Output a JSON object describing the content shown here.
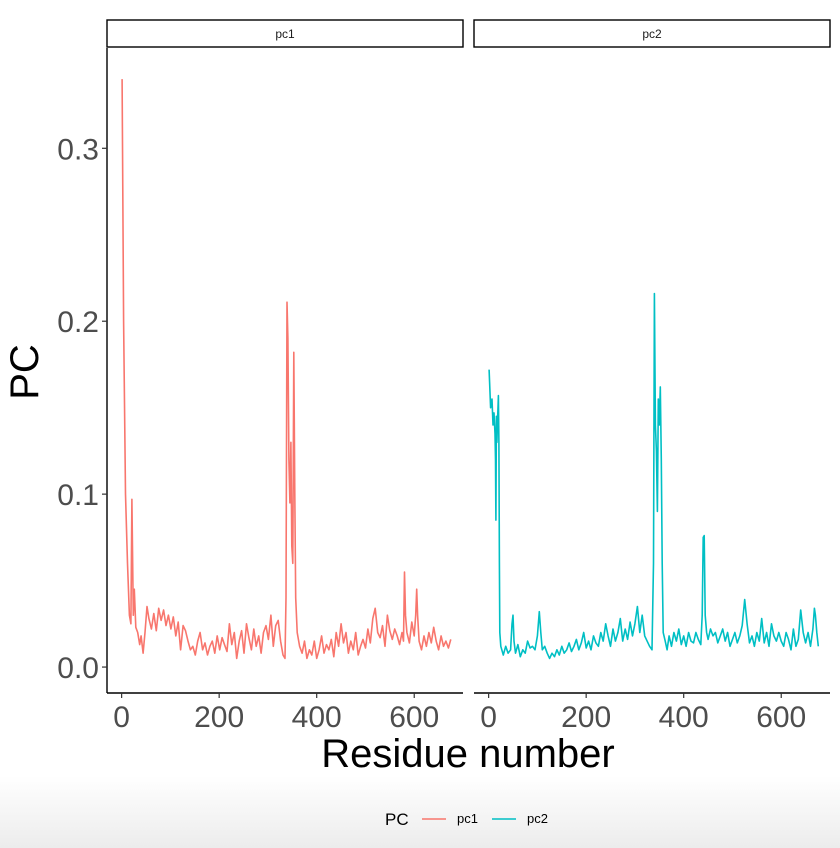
{
  "chart_data": {
    "type": "line",
    "xlabel": "Residue number",
    "ylabel": "PC",
    "xlim": [
      -30,
      700
    ],
    "ylim": [
      -0.015,
      0.358
    ],
    "xticks": [
      0,
      200,
      400,
      600
    ],
    "yticks": [
      0.0,
      0.1,
      0.2,
      0.3
    ],
    "ytick_labels": [
      "0.0",
      "0.1",
      "0.2",
      "0.3"
    ],
    "grid": false,
    "legend": {
      "title": "PC",
      "placement": "bottom"
    },
    "facets": [
      {
        "strip": "pc1",
        "name": "pc1",
        "color": "#F8766D",
        "points": [
          [
            1,
            0.34
          ],
          [
            4,
            0.2
          ],
          [
            8,
            0.1
          ],
          [
            12,
            0.06
          ],
          [
            16,
            0.03
          ],
          [
            19,
            0.025
          ],
          [
            21,
            0.097
          ],
          [
            24,
            0.03
          ],
          [
            26,
            0.045
          ],
          [
            29,
            0.023
          ],
          [
            33,
            0.02
          ],
          [
            37,
            0.013
          ],
          [
            40,
            0.018
          ],
          [
            44,
            0.008
          ],
          [
            48,
            0.02
          ],
          [
            52,
            0.035
          ],
          [
            56,
            0.028
          ],
          [
            61,
            0.022
          ],
          [
            66,
            0.031
          ],
          [
            71,
            0.021
          ],
          [
            76,
            0.034
          ],
          [
            81,
            0.027
          ],
          [
            86,
            0.033
          ],
          [
            91,
            0.024
          ],
          [
            96,
            0.03
          ],
          [
            101,
            0.022
          ],
          [
            106,
            0.029
          ],
          [
            111,
            0.018
          ],
          [
            116,
            0.026
          ],
          [
            121,
            0.01
          ],
          [
            126,
            0.024
          ],
          [
            131,
            0.021
          ],
          [
            136,
            0.015
          ],
          [
            141,
            0.01
          ],
          [
            146,
            0.012
          ],
          [
            151,
            0.007
          ],
          [
            156,
            0.015
          ],
          [
            161,
            0.02
          ],
          [
            166,
            0.01
          ],
          [
            171,
            0.014
          ],
          [
            176,
            0.007
          ],
          [
            181,
            0.012
          ],
          [
            186,
            0.015
          ],
          [
            191,
            0.008
          ],
          [
            196,
            0.018
          ],
          [
            201,
            0.01
          ],
          [
            206,
            0.017
          ],
          [
            211,
            0.013
          ],
          [
            216,
            0.009
          ],
          [
            221,
            0.025
          ],
          [
            226,
            0.013
          ],
          [
            231,
            0.02
          ],
          [
            236,
            0.005
          ],
          [
            241,
            0.015
          ],
          [
            246,
            0.021
          ],
          [
            251,
            0.008
          ],
          [
            256,
            0.025
          ],
          [
            261,
            0.017
          ],
          [
            266,
            0.01
          ],
          [
            271,
            0.022
          ],
          [
            276,
            0.012
          ],
          [
            281,
            0.018
          ],
          [
            286,
            0.008
          ],
          [
            291,
            0.02
          ],
          [
            296,
            0.024
          ],
          [
            301,
            0.016
          ],
          [
            306,
            0.03
          ],
          [
            311,
            0.012
          ],
          [
            316,
            0.024
          ],
          [
            321,
            0.027
          ],
          [
            326,
            0.015
          ],
          [
            331,
            0.007
          ],
          [
            335,
            0.005
          ],
          [
            337,
            0.04
          ],
          [
            339,
            0.211
          ],
          [
            341,
            0.19
          ],
          [
            343,
            0.12
          ],
          [
            345,
            0.095
          ],
          [
            347,
            0.13
          ],
          [
            349,
            0.07
          ],
          [
            351,
            0.06
          ],
          [
            353,
            0.182
          ],
          [
            355,
            0.1
          ],
          [
            357,
            0.04
          ],
          [
            360,
            0.02
          ],
          [
            365,
            0.012
          ],
          [
            370,
            0.008
          ],
          [
            375,
            0.015
          ],
          [
            380,
            0.005
          ],
          [
            385,
            0.01
          ],
          [
            390,
            0.007
          ],
          [
            395,
            0.015
          ],
          [
            400,
            0.005
          ],
          [
            405,
            0.01
          ],
          [
            410,
            0.018
          ],
          [
            415,
            0.008
          ],
          [
            420,
            0.013
          ],
          [
            425,
            0.01
          ],
          [
            430,
            0.016
          ],
          [
            435,
            0.006
          ],
          [
            440,
            0.02
          ],
          [
            445,
            0.012
          ],
          [
            450,
            0.025
          ],
          [
            455,
            0.014
          ],
          [
            460,
            0.02
          ],
          [
            465,
            0.008
          ],
          [
            470,
            0.015
          ],
          [
            475,
            0.01
          ],
          [
            480,
            0.02
          ],
          [
            485,
            0.007
          ],
          [
            490,
            0.012
          ],
          [
            495,
            0.016
          ],
          [
            500,
            0.011
          ],
          [
            505,
            0.022
          ],
          [
            510,
            0.014
          ],
          [
            515,
            0.028
          ],
          [
            520,
            0.034
          ],
          [
            525,
            0.02
          ],
          [
            530,
            0.017
          ],
          [
            535,
            0.024
          ],
          [
            540,
            0.012
          ],
          [
            545,
            0.03
          ],
          [
            550,
            0.021
          ],
          [
            555,
            0.016
          ],
          [
            560,
            0.022
          ],
          [
            565,
            0.018
          ],
          [
            570,
            0.013
          ],
          [
            575,
            0.02
          ],
          [
            578,
            0.015
          ],
          [
            580,
            0.055
          ],
          [
            582,
            0.03
          ],
          [
            585,
            0.02
          ],
          [
            590,
            0.014
          ],
          [
            595,
            0.026
          ],
          [
            600,
            0.018
          ],
          [
            603,
            0.03
          ],
          [
            605,
            0.045
          ],
          [
            607,
            0.03
          ],
          [
            610,
            0.015
          ],
          [
            615,
            0.01
          ],
          [
            620,
            0.018
          ],
          [
            625,
            0.012
          ],
          [
            630,
            0.02
          ],
          [
            635,
            0.014
          ],
          [
            640,
            0.023
          ],
          [
            645,
            0.015
          ],
          [
            650,
            0.01
          ],
          [
            655,
            0.018
          ],
          [
            660,
            0.012
          ],
          [
            665,
            0.015
          ],
          [
            670,
            0.011
          ],
          [
            675,
            0.016
          ]
        ]
      },
      {
        "strip": "pc2",
        "name": "pc2",
        "color": "#00BFC4",
        "points": [
          [
            1,
            0.172
          ],
          [
            4,
            0.15
          ],
          [
            7,
            0.155
          ],
          [
            9,
            0.14
          ],
          [
            11,
            0.147
          ],
          [
            13,
            0.135
          ],
          [
            14,
            0.12
          ],
          [
            15,
            0.085
          ],
          [
            16,
            0.145
          ],
          [
            17,
            0.13
          ],
          [
            18,
            0.14
          ],
          [
            20,
            0.157
          ],
          [
            21,
            0.13
          ],
          [
            22,
            0.06
          ],
          [
            23,
            0.02
          ],
          [
            25,
            0.012
          ],
          [
            30,
            0.007
          ],
          [
            35,
            0.012
          ],
          [
            40,
            0.008
          ],
          [
            45,
            0.01
          ],
          [
            48,
            0.025
          ],
          [
            50,
            0.03
          ],
          [
            52,
            0.015
          ],
          [
            55,
            0.008
          ],
          [
            60,
            0.013
          ],
          [
            65,
            0.006
          ],
          [
            70,
            0.01
          ],
          [
            75,
            0.008
          ],
          [
            80,
            0.015
          ],
          [
            85,
            0.011
          ],
          [
            90,
            0.012
          ],
          [
            95,
            0.01
          ],
          [
            100,
            0.018
          ],
          [
            104,
            0.032
          ],
          [
            107,
            0.02
          ],
          [
            110,
            0.01
          ],
          [
            115,
            0.012
          ],
          [
            120,
            0.008
          ],
          [
            125,
            0.005
          ],
          [
            130,
            0.008
          ],
          [
            135,
            0.006
          ],
          [
            140,
            0.01
          ],
          [
            145,
            0.007
          ],
          [
            150,
            0.012
          ],
          [
            155,
            0.008
          ],
          [
            160,
            0.01
          ],
          [
            165,
            0.014
          ],
          [
            170,
            0.009
          ],
          [
            175,
            0.012
          ],
          [
            180,
            0.016
          ],
          [
            185,
            0.01
          ],
          [
            190,
            0.014
          ],
          [
            195,
            0.02
          ],
          [
            200,
            0.011
          ],
          [
            205,
            0.015
          ],
          [
            210,
            0.01
          ],
          [
            215,
            0.018
          ],
          [
            220,
            0.014
          ],
          [
            225,
            0.012
          ],
          [
            230,
            0.02
          ],
          [
            235,
            0.015
          ],
          [
            240,
            0.025
          ],
          [
            245,
            0.018
          ],
          [
            250,
            0.012
          ],
          [
            255,
            0.022
          ],
          [
            260,
            0.015
          ],
          [
            265,
            0.02
          ],
          [
            270,
            0.028
          ],
          [
            275,
            0.015
          ],
          [
            280,
            0.022
          ],
          [
            285,
            0.016
          ],
          [
            290,
            0.026
          ],
          [
            295,
            0.018
          ],
          [
            300,
            0.025
          ],
          [
            305,
            0.035
          ],
          [
            310,
            0.02
          ],
          [
            315,
            0.03
          ],
          [
            320,
            0.018
          ],
          [
            325,
            0.015
          ],
          [
            330,
            0.012
          ],
          [
            335,
            0.01
          ],
          [
            338,
            0.06
          ],
          [
            340,
            0.216
          ],
          [
            342,
            0.14
          ],
          [
            344,
            0.125
          ],
          [
            346,
            0.09
          ],
          [
            348,
            0.155
          ],
          [
            350,
            0.14
          ],
          [
            352,
            0.162
          ],
          [
            354,
            0.12
          ],
          [
            356,
            0.06
          ],
          [
            358,
            0.02
          ],
          [
            362,
            0.015
          ],
          [
            366,
            0.01
          ],
          [
            370,
            0.018
          ],
          [
            375,
            0.012
          ],
          [
            380,
            0.02
          ],
          [
            385,
            0.015
          ],
          [
            390,
            0.022
          ],
          [
            395,
            0.013
          ],
          [
            400,
            0.018
          ],
          [
            405,
            0.012
          ],
          [
            410,
            0.02
          ],
          [
            415,
            0.015
          ],
          [
            420,
            0.014
          ],
          [
            425,
            0.02
          ],
          [
            430,
            0.016
          ],
          [
            435,
            0.013
          ],
          [
            438,
            0.03
          ],
          [
            440,
            0.075
          ],
          [
            442,
            0.076
          ],
          [
            444,
            0.03
          ],
          [
            447,
            0.02
          ],
          [
            450,
            0.016
          ],
          [
            455,
            0.022
          ],
          [
            460,
            0.018
          ],
          [
            465,
            0.02
          ],
          [
            470,
            0.014
          ],
          [
            475,
            0.018
          ],
          [
            480,
            0.022
          ],
          [
            485,
            0.015
          ],
          [
            490,
            0.02
          ],
          [
            495,
            0.012
          ],
          [
            500,
            0.016
          ],
          [
            505,
            0.02
          ],
          [
            510,
            0.014
          ],
          [
            515,
            0.018
          ],
          [
            520,
            0.024
          ],
          [
            525,
            0.039
          ],
          [
            530,
            0.025
          ],
          [
            535,
            0.014
          ],
          [
            540,
            0.018
          ],
          [
            545,
            0.012
          ],
          [
            550,
            0.02
          ],
          [
            555,
            0.015
          ],
          [
            560,
            0.028
          ],
          [
            565,
            0.014
          ],
          [
            570,
            0.02
          ],
          [
            575,
            0.012
          ],
          [
            580,
            0.025
          ],
          [
            585,
            0.018
          ],
          [
            590,
            0.015
          ],
          [
            595,
            0.02
          ],
          [
            600,
            0.015
          ],
          [
            605,
            0.012
          ],
          [
            610,
            0.02
          ],
          [
            615,
            0.016
          ],
          [
            620,
            0.01
          ],
          [
            625,
            0.022
          ],
          [
            630,
            0.012
          ],
          [
            635,
            0.016
          ],
          [
            640,
            0.033
          ],
          [
            645,
            0.02
          ],
          [
            650,
            0.014
          ],
          [
            655,
            0.02
          ],
          [
            660,
            0.012
          ],
          [
            665,
            0.022
          ],
          [
            668,
            0.034
          ],
          [
            670,
            0.03
          ],
          [
            673,
            0.02
          ],
          [
            676,
            0.012
          ]
        ]
      }
    ]
  }
}
